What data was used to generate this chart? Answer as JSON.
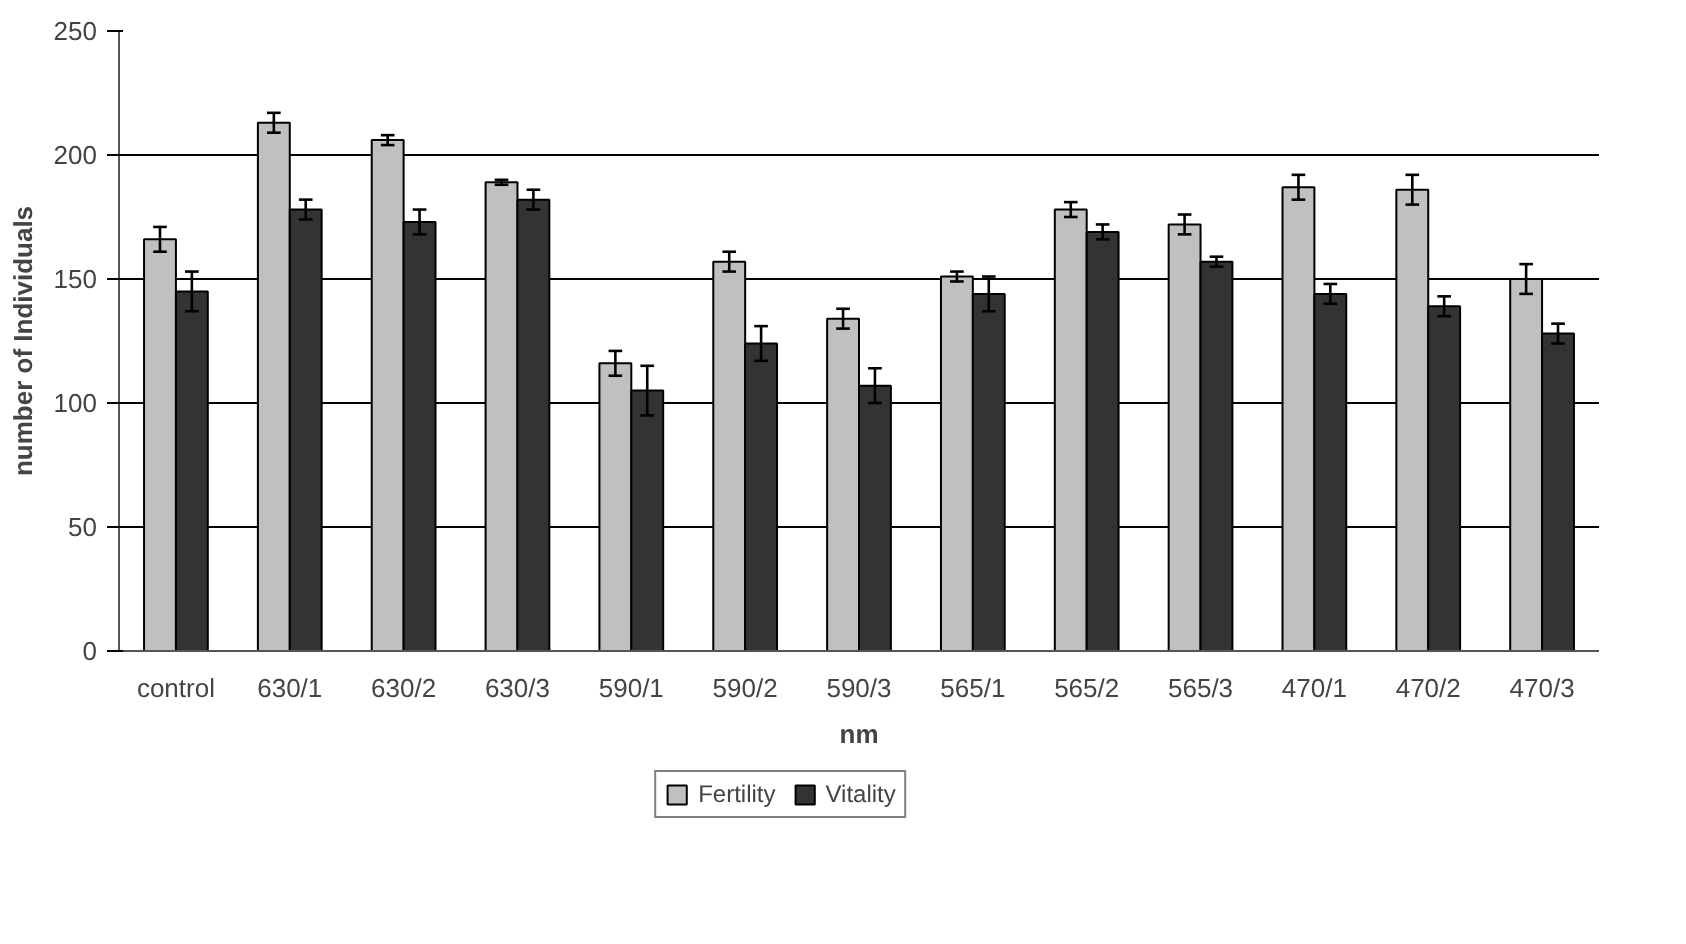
{
  "chart_data": {
    "type": "bar",
    "xlabel": "nm",
    "ylabel": "number of Individuals",
    "categories": [
      "control",
      "630/1",
      "630/2",
      "630/3",
      "590/1",
      "590/2",
      "590/3",
      "565/1",
      "565/2",
      "565/3",
      "470/1",
      "470/2",
      "470/3"
    ],
    "series": [
      {
        "name": "Fertility",
        "color": "#c0c0c0",
        "values": [
          166,
          213,
          206,
          189,
          116,
          157,
          134,
          151,
          178,
          172,
          187,
          186,
          150
        ],
        "errors": [
          5,
          4,
          2,
          1,
          5,
          4,
          4,
          2,
          3,
          4,
          5,
          6,
          6
        ]
      },
      {
        "name": "Vitality",
        "color": "#333333",
        "values": [
          145,
          178,
          173,
          182,
          105,
          124,
          107,
          144,
          169,
          157,
          144,
          139,
          128
        ],
        "errors": [
          8,
          4,
          5,
          4,
          10,
          7,
          7,
          7,
          3,
          2,
          4,
          4,
          4
        ]
      }
    ],
    "ylim": [
      0,
      250
    ],
    "yticks": [
      0,
      50,
      100,
      150,
      200,
      250
    ],
    "grid": "y",
    "legend": "bottom"
  }
}
